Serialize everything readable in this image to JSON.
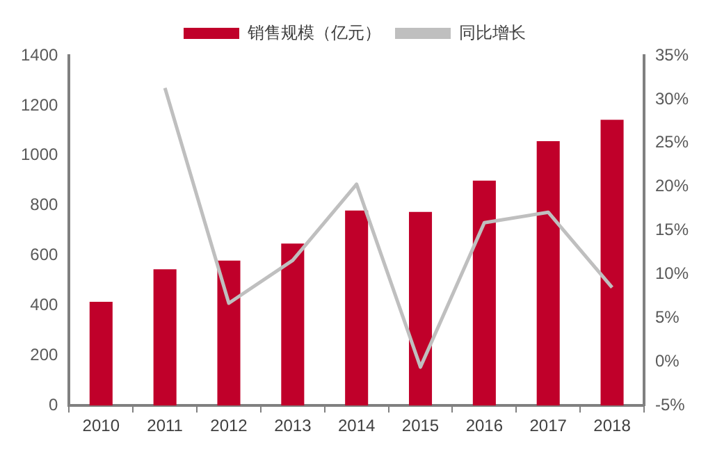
{
  "chart_data": {
    "type": "bar",
    "categories": [
      "2010",
      "2011",
      "2012",
      "2013",
      "2014",
      "2015",
      "2016",
      "2017",
      "2018"
    ],
    "series": [
      {
        "name": "销售规模（亿元）",
        "color": "#c0002a",
        "values": [
          415,
          545,
          580,
          648,
          780,
          775,
          900,
          1058,
          1143
        ]
      },
      {
        "name": "同比增长",
        "type": "line",
        "axis": "y2",
        "color": "#bfbfbf",
        "values": [
          null,
          31.3,
          6.7,
          11.6,
          20.3,
          -0.6,
          15.9,
          17.1,
          8.5
        ]
      }
    ],
    "ylim": [
      0,
      1400
    ],
    "yticks": [
      0,
      200,
      400,
      600,
      800,
      1000,
      1200,
      1400
    ],
    "y2lim": [
      -5,
      35
    ],
    "y2ticks": [
      {
        "value": -5,
        "label": "-5%"
      },
      {
        "value": 0,
        "label": "0%"
      },
      {
        "value": 5,
        "label": "5%"
      },
      {
        "value": 10,
        "label": "10%"
      },
      {
        "value": 15,
        "label": "15%"
      },
      {
        "value": 20,
        "label": "20%"
      },
      {
        "value": 25,
        "label": "25%"
      },
      {
        "value": 30,
        "label": "30%"
      },
      {
        "value": 35,
        "label": "35%"
      }
    ],
    "grid": false,
    "legend": "top",
    "marker": "none"
  }
}
